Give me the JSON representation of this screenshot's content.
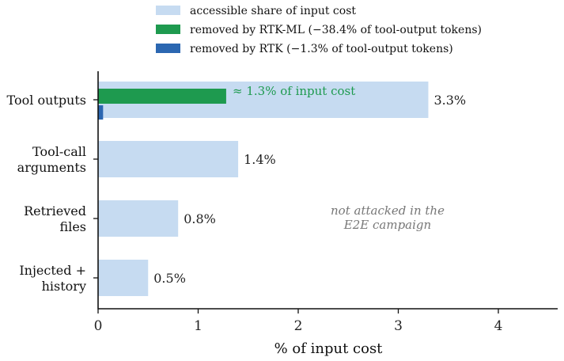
{
  "chart_data": {
    "type": "bar",
    "orientation": "horizontal",
    "categories": [
      [
        "Tool outputs"
      ],
      [
        "Tool-call",
        "arguments"
      ],
      [
        "Retrieved",
        "files"
      ],
      [
        "Injected +",
        "history"
      ]
    ],
    "series": [
      {
        "name": "accessible share of input cost",
        "color": "#c6dbf1",
        "values": [
          3.3,
          1.4,
          0.8,
          0.5
        ]
      },
      {
        "name": "removed by RTK-ML (−38.4% of tool-output tokens)",
        "color": "#1e9a4f",
        "values": [
          1.28,
          null,
          null,
          null
        ]
      },
      {
        "name": "removed by RTK (−1.3% of tool-output tokens)",
        "color": "#2b67b1",
        "values": [
          0.05,
          null,
          null,
          null
        ]
      }
    ],
    "value_labels": [
      "3.3%",
      "1.4%",
      "0.8%",
      "0.5%"
    ],
    "annotations": {
      "green_note": "≈ 1.3% of input cost",
      "gray_note": [
        "not attacked in the",
        "E2E campaign"
      ]
    },
    "xlabel": "% of input cost",
    "ylabel": "",
    "xlim": [
      0,
      4.6
    ],
    "xticks": [
      0,
      1,
      2,
      3,
      4
    ],
    "grid": false,
    "legend_position": "top-center"
  }
}
